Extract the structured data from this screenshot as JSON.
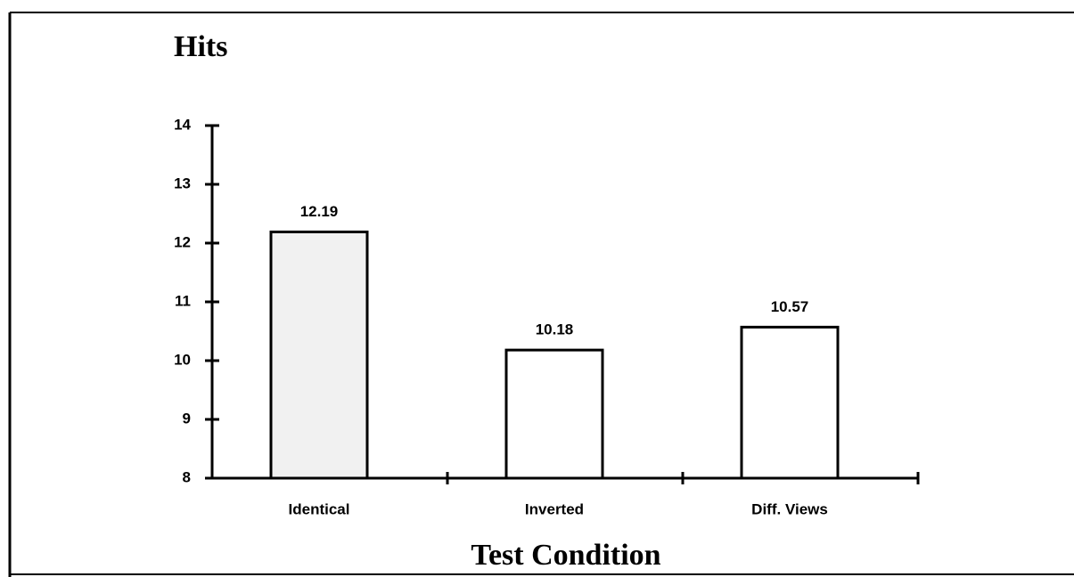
{
  "chart_data": {
    "type": "bar",
    "y_label": "Hits",
    "x_label": "Test Condition",
    "categories": [
      "Identical",
      "Inverted",
      "Diff. Views"
    ],
    "values": [
      12.19,
      10.18,
      10.57
    ],
    "colors": [
      "#f1f1f1",
      "#ffffff",
      "#ffffff"
    ],
    "ylim": [
      8,
      14
    ],
    "yticks": [
      8,
      9,
      10,
      11,
      12,
      13,
      14
    ],
    "grid": false
  }
}
